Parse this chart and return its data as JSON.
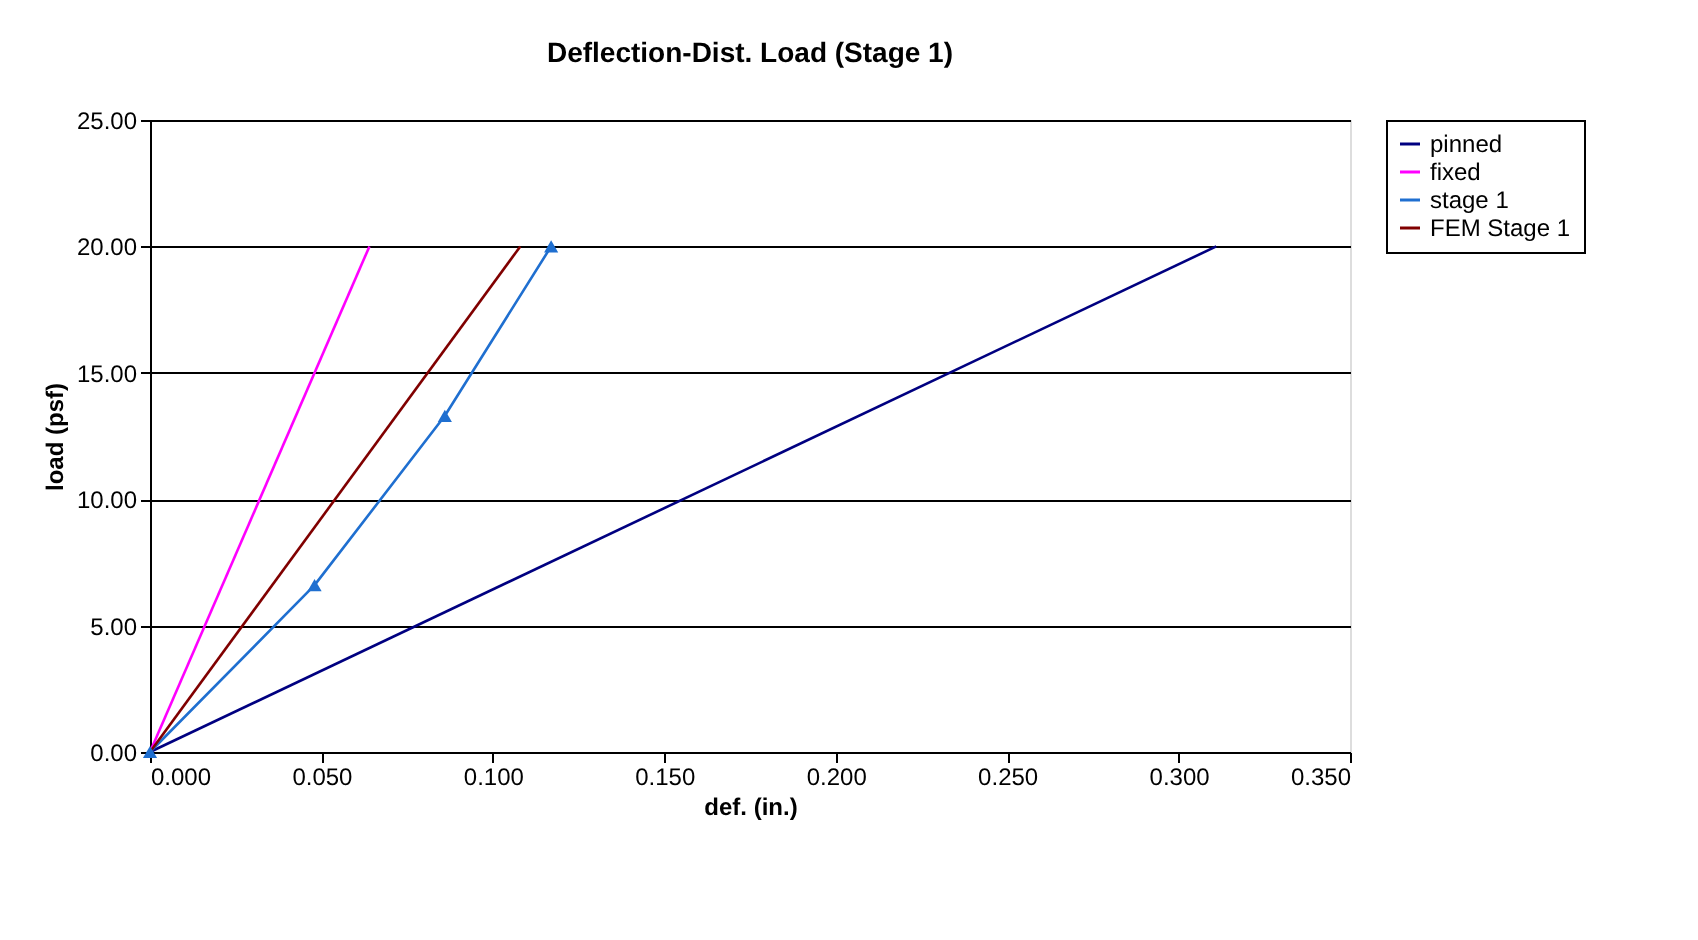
{
  "chart_data": {
    "type": "line",
    "title": "Deflection-Dist. Load (Stage 1)",
    "xlabel": "def. (in.)",
    "ylabel": "load (psf)",
    "series": [
      {
        "name": "pinned",
        "color": "#000080",
        "x": [
          0,
          0.311
        ],
        "values": [
          0,
          20
        ],
        "marker": "none"
      },
      {
        "name": "fixed",
        "color": "#ff00ff",
        "x": [
          0,
          0.064
        ],
        "values": [
          0,
          20
        ],
        "marker": "none"
      },
      {
        "name": "stage 1",
        "color": "#1f6fd0",
        "x": [
          0,
          0.048,
          0.086,
          0.117
        ],
        "values": [
          0,
          6.6,
          13.3,
          20
        ],
        "marker": "triangle"
      },
      {
        "name": "FEM Stage 1",
        "color": "#800000",
        "x": [
          0,
          0.108
        ],
        "values": [
          0,
          20
        ],
        "marker": "none"
      }
    ],
    "xlim": [
      0,
      0.35
    ],
    "xticks": [
      {
        "value": 0,
        "label": "0.000"
      },
      {
        "value": 0.05,
        "label": "0.050"
      },
      {
        "value": 0.1,
        "label": "0.100"
      },
      {
        "value": 0.15,
        "label": "0.150"
      },
      {
        "value": 0.2,
        "label": "0.200"
      },
      {
        "value": 0.25,
        "label": "0.250"
      },
      {
        "value": 0.3,
        "label": "0.300"
      },
      {
        "value": 0.35,
        "label": "0.350"
      }
    ],
    "ylim": [
      0,
      25
    ],
    "yticks": [
      {
        "value": 0,
        "label": "0.00"
      },
      {
        "value": 5,
        "label": "5.00"
      },
      {
        "value": 10,
        "label": "10.00"
      },
      {
        "value": 15,
        "label": "15.00"
      },
      {
        "value": 20,
        "label": "20.00"
      },
      {
        "value": 25,
        "label": "25.00"
      }
    ],
    "grid": "y",
    "legend": "right"
  }
}
